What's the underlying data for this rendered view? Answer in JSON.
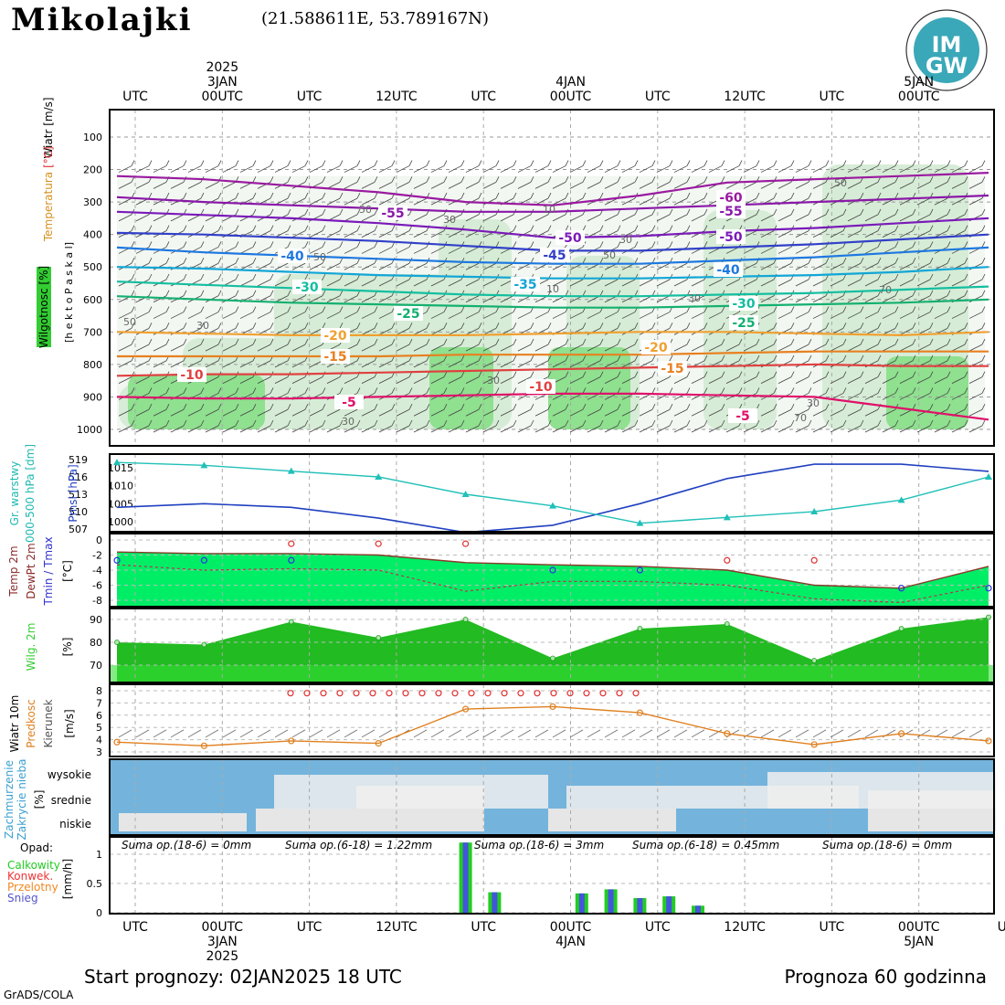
{
  "header": {
    "station": "Mikolajki",
    "coords": "(21.588611E, 53.789167N)"
  },
  "logo": {
    "line1": "IM",
    "line2": "GW"
  },
  "time_axis": {
    "top_labels": [
      "UTC",
      "00UTC",
      "UTC",
      "12UTC",
      "UTC",
      "00UTC",
      "UTC",
      "12UTC",
      "UTC",
      "00UTC"
    ],
    "top_labels_split": [
      [
        "UTC"
      ],
      [
        "00",
        "UTC"
      ],
      [
        "UTC"
      ],
      [
        "12",
        "UTC"
      ],
      [
        "UTC"
      ],
      [
        "00",
        "UTC"
      ],
      [
        "UTC"
      ],
      [
        "12",
        "UTC"
      ],
      [
        "UTC"
      ],
      [
        "00",
        "UTC"
      ]
    ],
    "top_dates": [
      {
        "label": "2025",
        "col": 1
      },
      {
        "label": "3JAN",
        "col": 1
      },
      {
        "label": "4JAN",
        "col": 5
      },
      {
        "label": "5JAN",
        "col": 9
      }
    ],
    "bottom_labels": [
      "UTC",
      "00UTC",
      "UTC",
      "12UTC",
      "UTC",
      "00UTC",
      "UTC",
      "12UTC",
      "UTC",
      "00UTC",
      "UT"
    ],
    "bottom_dates": [
      {
        "label": "3JAN",
        "col": 1
      },
      {
        "label": "2025",
        "col": 1
      },
      {
        "label": "4JAN",
        "col": 5
      },
      {
        "label": "5JAN",
        "col": 9
      }
    ]
  },
  "panels": {
    "upper_air": {
      "ylabel_wind": "Wiatr [m/s]",
      "ylabel_temp_unit": "[°C]",
      "ylabel_temp": "Temperatura",
      "ylabel_hum": "Wilgotnosc [%]",
      "ylabel_hpa": "[h e k t o P a s k a l]",
      "levels": [
        100,
        200,
        300,
        400,
        500,
        600,
        700,
        800,
        900,
        1000
      ],
      "isotherm_labels": [
        "-60",
        "-55",
        "-55",
        "-50",
        "-50",
        "-45",
        "-40",
        "-40",
        "-35",
        "-30",
        "-30",
        "-25",
        "-25",
        "-20",
        "-20",
        "-15",
        "-15",
        "-10",
        "-10",
        "-5",
        "-5"
      ],
      "humidity_labels": [
        "30",
        "50",
        "50",
        "30",
        "10",
        "10",
        "30",
        "50",
        "50",
        "70",
        "30",
        "30",
        "70",
        "50",
        "30",
        "30"
      ]
    },
    "pressure": {
      "ylabel_gr": "Gr. warstwy",
      "ylabel_gr2": "000-500 hPa [dm]",
      "ylabel_prms": "Pmsl [hPa]",
      "left_ticks": [
        "519",
        "516",
        "513",
        "510",
        "507"
      ],
      "right_ticks": [
        "1015",
        "1010",
        "1005",
        "1000"
      ]
    },
    "temperature": {
      "label_temp": "Temp 2m",
      "label_dew": "DewPt 2m",
      "label_tmin": "Tmin / Tmax",
      "unit": "[°C]",
      "ticks": [
        "0",
        "-2",
        "-4",
        "-6",
        "-8"
      ]
    },
    "humidity": {
      "label": "Wilg. 2m",
      "unit": "[%]",
      "ticks": [
        "90",
        "80",
        "70"
      ]
    },
    "wind": {
      "label1": "Wiatr 10m",
      "label2": "Predkosc",
      "label3": "Kierunek",
      "unit": "[m/s]",
      "ticks": [
        "8",
        "7",
        "6",
        "5",
        "4",
        "3"
      ]
    },
    "clouds": {
      "label1": "Zachmurzenie",
      "label2": "Zakrycie nieba",
      "unit": "[%]",
      "levels": [
        "wysokie",
        "srednie",
        "niskie"
      ]
    },
    "precip": {
      "title": "Opad:",
      "legend": [
        {
          "label": "Calkowity",
          "color": "#22cc22"
        },
        {
          "label": "Konwek.",
          "color": "#ee3333"
        },
        {
          "label": "Przelotny",
          "color": "#ee8822"
        },
        {
          "label": "Snieg",
          "color": "#5555cc"
        }
      ],
      "unit": "[mm/h]",
      "ticks": [
        "1",
        "0.5",
        "0"
      ],
      "sums": [
        "Suma op.(18-6) = 0mm",
        "Suma op.(6-18) = 1.22mm",
        "Suma op.(18-6) = 3mm",
        "Suma op.(6-18) = 0.45mm",
        "Suma op.(18-6) = 0mm"
      ]
    }
  },
  "footer": {
    "start": "Start prognozy: 02JAN2025 18 UTC",
    "forecast": "Prognoza 60 godzinna",
    "credit": "GrADS/COLA"
  },
  "chart_data": [
    {
      "type": "line",
      "name": "upper-air isotherms",
      "x_hours": [
        0,
        6,
        12,
        18,
        24,
        30,
        36,
        42,
        48,
        54,
        60
      ],
      "series": [
        {
          "name": "-60",
          "values": [
            220,
            230,
            250,
            270,
            300,
            310,
            280,
            240,
            230,
            220,
            210
          ]
        },
        {
          "name": "-55",
          "values": [
            285,
            300,
            310,
            320,
            330,
            330,
            320,
            310,
            300,
            290,
            280
          ]
        },
        {
          "name": "-50",
          "values": [
            330,
            340,
            350,
            365,
            385,
            410,
            405,
            390,
            380,
            365,
            350
          ]
        },
        {
          "name": "-45",
          "values": [
            395,
            400,
            410,
            420,
            435,
            450,
            450,
            440,
            430,
            415,
            400
          ]
        },
        {
          "name": "-40",
          "values": [
            440,
            455,
            465,
            475,
            485,
            490,
            490,
            480,
            470,
            455,
            440
          ]
        },
        {
          "name": "-35",
          "values": [
            500,
            505,
            515,
            525,
            530,
            535,
            535,
            530,
            525,
            515,
            500
          ]
        },
        {
          "name": "-30",
          "values": [
            545,
            555,
            565,
            575,
            585,
            590,
            590,
            585,
            580,
            570,
            560
          ]
        },
        {
          "name": "-25",
          "values": [
            590,
            600,
            610,
            615,
            620,
            625,
            625,
            620,
            615,
            610,
            600
          ]
        },
        {
          "name": "-20",
          "values": [
            700,
            705,
            710,
            710,
            710,
            705,
            700,
            700,
            705,
            710,
            700
          ]
        },
        {
          "name": "-15",
          "values": [
            775,
            775,
            775,
            775,
            770,
            770,
            770,
            765,
            760,
            760,
            760
          ]
        },
        {
          "name": "-10",
          "values": [
            835,
            830,
            830,
            825,
            820,
            815,
            810,
            805,
            800,
            805,
            805
          ]
        },
        {
          "name": "-5",
          "values": [
            900,
            905,
            905,
            900,
            895,
            890,
            890,
            895,
            900,
            935,
            970
          ]
        }
      ]
    },
    {
      "type": "line",
      "name": "pressure",
      "x_hours": [
        0,
        6,
        12,
        18,
        24,
        30,
        36,
        42,
        48,
        54,
        60
      ],
      "series": [
        {
          "name": "Pmsl",
          "values": [
            1004,
            1005,
            1004,
            1001,
            997,
            999,
            1005,
            1012,
            1016,
            1016,
            1014
          ]
        },
        {
          "name": "Gr. warstwy",
          "values": [
            518.5,
            518,
            517,
            516,
            513,
            511,
            508,
            509,
            510,
            512,
            516
          ]
        }
      ]
    },
    {
      "type": "line",
      "name": "temperature",
      "x_hours": [
        0,
        6,
        12,
        18,
        24,
        30,
        36,
        42,
        48,
        54,
        60
      ],
      "series": [
        {
          "name": "Temp 2m",
          "values": [
            -1.6,
            -1.8,
            -1.8,
            -2.0,
            -3.0,
            -3.3,
            -3.5,
            -4.0,
            -6.0,
            -6.4,
            -3.5
          ]
        },
        {
          "name": "DewPt 2m",
          "values": [
            -3.3,
            -4.0,
            -3.8,
            -4.0,
            -6.8,
            -5.5,
            -5.5,
            -6.0,
            -7.8,
            -8.3,
            -6.0
          ]
        },
        {
          "name": "Tmax",
          "values": [
            null,
            null,
            -0.5,
            -0.5,
            -0.5,
            null,
            null,
            -2.7,
            -2.7,
            null,
            null
          ]
        },
        {
          "name": "Tmin",
          "values": [
            -2.7,
            -2.7,
            -2.7,
            null,
            null,
            -4.0,
            -4.0,
            null,
            null,
            -6.4,
            -6.4
          ]
        }
      ]
    },
    {
      "type": "area",
      "name": "humidity 2m",
      "x_hours": [
        0,
        6,
        12,
        18,
        24,
        30,
        36,
        42,
        48,
        54,
        60
      ],
      "values": [
        80,
        79,
        89,
        82,
        90,
        73,
        86,
        88,
        72,
        86,
        91
      ],
      "ylim": [
        65,
        93
      ]
    },
    {
      "type": "line",
      "name": "wind 10m",
      "x_hours": [
        0,
        6,
        12,
        18,
        24,
        30,
        36,
        42,
        48,
        54,
        60
      ],
      "values": [
        3.8,
        3.5,
        3.9,
        3.7,
        6.5,
        6.7,
        6.2,
        4.5,
        3.6,
        4.5,
        3.9
      ],
      "ylim": [
        3,
        8
      ]
    },
    {
      "type": "bar",
      "name": "precipitation",
      "x_hours": [
        24,
        26,
        32,
        34,
        36,
        38,
        40
      ],
      "values": [
        1.2,
        0.35,
        0.33,
        0.4,
        0.25,
        0.28,
        0.12
      ],
      "ylim": [
        0,
        1.2
      ]
    }
  ]
}
